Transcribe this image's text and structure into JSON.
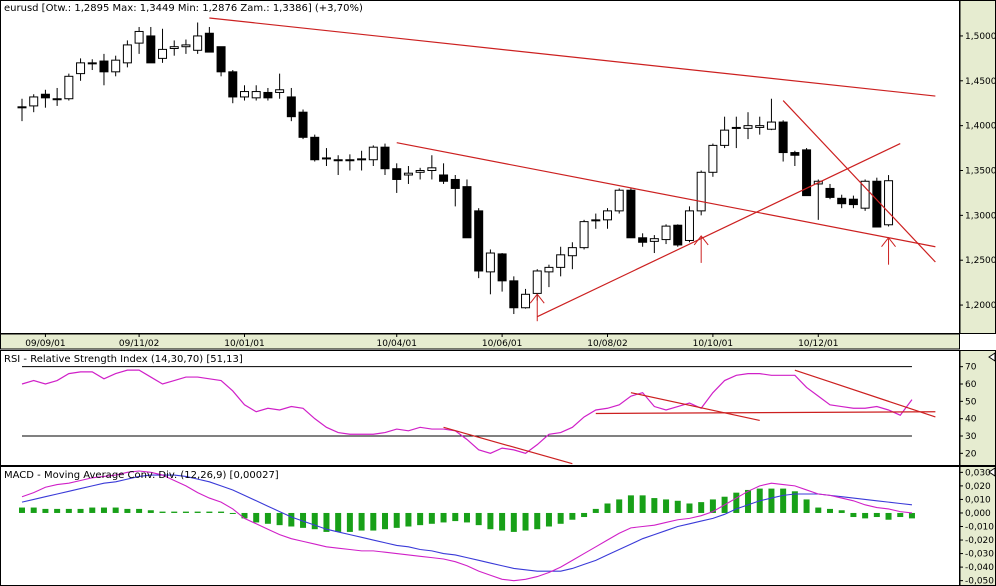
{
  "colors": {
    "background": "#ffffff",
    "axis_bg": "#e6ecd0",
    "bull_fill": "#ffffff",
    "bear_fill": "#000000",
    "candle_stroke": "#000000",
    "trendline": "#cc2020",
    "rsi_line": "#d020c8",
    "macd_line": "#3a3ad8",
    "signal_line": "#d020c8",
    "histogram": "#18a018",
    "level_line": "#000000"
  },
  "chart_data": [
    {
      "type": "candlestick",
      "title": "eurusd [Otw.: 1,2895  Max: 1,3449  Min: 1,2876  Zam.: 1,3386] (+3,70%)",
      "ylim": [
        1.18,
        1.52
      ],
      "y_ticks": [
        "1,2000",
        "1,2500",
        "1,3000",
        "1,3500",
        "1,4000",
        "1,4500",
        "1,5000"
      ],
      "y_tick_values": [
        1.2,
        1.25,
        1.3,
        1.35,
        1.4,
        1.45,
        1.5
      ],
      "x_labels": [
        "09/09/01",
        "09/11/02",
        "10/01/01",
        "10/04/01",
        "10/06/01",
        "10/08/02",
        "10/10/01",
        "10/12/01"
      ],
      "x_label_index": [
        2,
        10,
        19,
        32,
        41,
        50,
        59,
        68
      ],
      "candles": [
        {
          "o": 1.42,
          "h": 1.43,
          "l": 1.405,
          "c": 1.421
        },
        {
          "o": 1.422,
          "h": 1.435,
          "l": 1.415,
          "c": 1.432
        },
        {
          "o": 1.435,
          "h": 1.44,
          "l": 1.42,
          "c": 1.431
        },
        {
          "o": 1.43,
          "h": 1.442,
          "l": 1.422,
          "c": 1.43
        },
        {
          "o": 1.43,
          "h": 1.458,
          "l": 1.428,
          "c": 1.455
        },
        {
          "o": 1.458,
          "h": 1.475,
          "l": 1.45,
          "c": 1.47
        },
        {
          "o": 1.47,
          "h": 1.474,
          "l": 1.462,
          "c": 1.47
        },
        {
          "o": 1.472,
          "h": 1.48,
          "l": 1.445,
          "c": 1.46
        },
        {
          "o": 1.46,
          "h": 1.478,
          "l": 1.455,
          "c": 1.473
        },
        {
          "o": 1.47,
          "h": 1.495,
          "l": 1.465,
          "c": 1.49
        },
        {
          "o": 1.492,
          "h": 1.51,
          "l": 1.48,
          "c": 1.505
        },
        {
          "o": 1.5,
          "h": 1.51,
          "l": 1.47,
          "c": 1.47
        },
        {
          "o": 1.475,
          "h": 1.508,
          "l": 1.47,
          "c": 1.485
        },
        {
          "o": 1.486,
          "h": 1.495,
          "l": 1.478,
          "c": 1.488
        },
        {
          "o": 1.488,
          "h": 1.496,
          "l": 1.48,
          "c": 1.49
        },
        {
          "o": 1.484,
          "h": 1.515,
          "l": 1.48,
          "c": 1.5
        },
        {
          "o": 1.503,
          "h": 1.51,
          "l": 1.482,
          "c": 1.482
        },
        {
          "o": 1.488,
          "h": 1.488,
          "l": 1.455,
          "c": 1.46
        },
        {
          "o": 1.46,
          "h": 1.462,
          "l": 1.425,
          "c": 1.432
        },
        {
          "o": 1.432,
          "h": 1.445,
          "l": 1.428,
          "c": 1.438
        },
        {
          "o": 1.431,
          "h": 1.445,
          "l": 1.428,
          "c": 1.438
        },
        {
          "o": 1.437,
          "h": 1.442,
          "l": 1.428,
          "c": 1.431
        },
        {
          "o": 1.437,
          "h": 1.458,
          "l": 1.43,
          "c": 1.44
        },
        {
          "o": 1.432,
          "h": 1.442,
          "l": 1.405,
          "c": 1.41
        },
        {
          "o": 1.415,
          "h": 1.418,
          "l": 1.385,
          "c": 1.387
        },
        {
          "o": 1.387,
          "h": 1.39,
          "l": 1.36,
          "c": 1.362
        },
        {
          "o": 1.364,
          "h": 1.375,
          "l": 1.355,
          "c": 1.363
        },
        {
          "o": 1.362,
          "h": 1.367,
          "l": 1.345,
          "c": 1.362
        },
        {
          "o": 1.361,
          "h": 1.368,
          "l": 1.35,
          "c": 1.362
        },
        {
          "o": 1.362,
          "h": 1.372,
          "l": 1.35,
          "c": 1.363
        },
        {
          "o": 1.362,
          "h": 1.378,
          "l": 1.355,
          "c": 1.376
        },
        {
          "o": 1.376,
          "h": 1.38,
          "l": 1.345,
          "c": 1.352
        },
        {
          "o": 1.352,
          "h": 1.358,
          "l": 1.325,
          "c": 1.34
        },
        {
          "o": 1.345,
          "h": 1.355,
          "l": 1.335,
          "c": 1.347
        },
        {
          "o": 1.348,
          "h": 1.353,
          "l": 1.34,
          "c": 1.35
        },
        {
          "o": 1.35,
          "h": 1.367,
          "l": 1.34,
          "c": 1.353
        },
        {
          "o": 1.345,
          "h": 1.358,
          "l": 1.335,
          "c": 1.338
        },
        {
          "o": 1.34,
          "h": 1.345,
          "l": 1.31,
          "c": 1.33
        },
        {
          "o": 1.332,
          "h": 1.34,
          "l": 1.278,
          "c": 1.275
        },
        {
          "o": 1.305,
          "h": 1.308,
          "l": 1.23,
          "c": 1.238
        },
        {
          "o": 1.237,
          "h": 1.262,
          "l": 1.212,
          "c": 1.258
        },
        {
          "o": 1.257,
          "h": 1.258,
          "l": 1.215,
          "c": 1.227
        },
        {
          "o": 1.227,
          "h": 1.232,
          "l": 1.19,
          "c": 1.197
        },
        {
          "o": 1.197,
          "h": 1.218,
          "l": 1.196,
          "c": 1.212
        },
        {
          "o": 1.213,
          "h": 1.24,
          "l": 1.205,
          "c": 1.238
        },
        {
          "o": 1.237,
          "h": 1.245,
          "l": 1.22,
          "c": 1.242
        },
        {
          "o": 1.242,
          "h": 1.265,
          "l": 1.232,
          "c": 1.256
        },
        {
          "o": 1.255,
          "h": 1.27,
          "l": 1.24,
          "c": 1.264
        },
        {
          "o": 1.264,
          "h": 1.295,
          "l": 1.262,
          "c": 1.293
        },
        {
          "o": 1.295,
          "h": 1.302,
          "l": 1.285,
          "c": 1.294
        },
        {
          "o": 1.295,
          "h": 1.308,
          "l": 1.285,
          "c": 1.305
        },
        {
          "o": 1.305,
          "h": 1.33,
          "l": 1.302,
          "c": 1.328
        },
        {
          "o": 1.328,
          "h": 1.33,
          "l": 1.275,
          "c": 1.275
        },
        {
          "o": 1.275,
          "h": 1.28,
          "l": 1.265,
          "c": 1.27
        },
        {
          "o": 1.271,
          "h": 1.278,
          "l": 1.258,
          "c": 1.274
        },
        {
          "o": 1.273,
          "h": 1.29,
          "l": 1.268,
          "c": 1.288
        },
        {
          "o": 1.289,
          "h": 1.29,
          "l": 1.265,
          "c": 1.267
        },
        {
          "o": 1.272,
          "h": 1.31,
          "l": 1.27,
          "c": 1.305
        },
        {
          "o": 1.305,
          "h": 1.35,
          "l": 1.3,
          "c": 1.348
        },
        {
          "o": 1.348,
          "h": 1.38,
          "l": 1.343,
          "c": 1.378
        },
        {
          "o": 1.378,
          "h": 1.41,
          "l": 1.375,
          "c": 1.395
        },
        {
          "o": 1.398,
          "h": 1.41,
          "l": 1.375,
          "c": 1.397
        },
        {
          "o": 1.397,
          "h": 1.415,
          "l": 1.385,
          "c": 1.4
        },
        {
          "o": 1.398,
          "h": 1.41,
          "l": 1.39,
          "c": 1.4
        },
        {
          "o": 1.396,
          "h": 1.43,
          "l": 1.395,
          "c": 1.404
        },
        {
          "o": 1.404,
          "h": 1.406,
          "l": 1.36,
          "c": 1.37
        },
        {
          "o": 1.37,
          "h": 1.372,
          "l": 1.355,
          "c": 1.367
        },
        {
          "o": 1.373,
          "h": 1.375,
          "l": 1.322,
          "c": 1.322
        },
        {
          "o": 1.335,
          "h": 1.34,
          "l": 1.295,
          "c": 1.338
        },
        {
          "o": 1.33,
          "h": 1.335,
          "l": 1.318,
          "c": 1.32
        },
        {
          "o": 1.319,
          "h": 1.323,
          "l": 1.308,
          "c": 1.313
        },
        {
          "o": 1.318,
          "h": 1.322,
          "l": 1.308,
          "c": 1.312
        },
        {
          "o": 1.308,
          "h": 1.34,
          "l": 1.305,
          "c": 1.338
        },
        {
          "o": 1.338,
          "h": 1.342,
          "l": 1.287,
          "c": 1.287
        },
        {
          "o": 1.2895,
          "h": 1.3449,
          "l": 1.2876,
          "c": 1.3386
        }
      ],
      "trendlines": [
        {
          "x1": 16,
          "y1": 1.52,
          "x2": 78,
          "y2": 1.433
        },
        {
          "x1": 32,
          "y1": 1.381,
          "x2": 78,
          "y2": 1.265
        },
        {
          "x1": 44,
          "y1": 1.187,
          "x2": 75,
          "y2": 1.38
        },
        {
          "x1": 65,
          "y1": 1.428,
          "x2": 78,
          "y2": 1.248
        }
      ],
      "arrows": [
        {
          "x": 44,
          "y": 1.182
        },
        {
          "x": 58,
          "y": 1.247
        },
        {
          "x": 74,
          "y": 1.245
        }
      ]
    },
    {
      "type": "line",
      "title": "RSI - Relative Strength Index (14,30,70) [51,13]",
      "ylim": [
        15,
        75
      ],
      "y_ticks": [
        "20",
        "30",
        "40",
        "50",
        "60",
        "70"
      ],
      "y_tick_values": [
        20,
        30,
        40,
        50,
        60,
        70
      ],
      "levels": [
        30,
        70
      ],
      "values": [
        60,
        62,
        60,
        62,
        66,
        67,
        67,
        63,
        66,
        68,
        68,
        64,
        60,
        62,
        64,
        64,
        63,
        62,
        56,
        48,
        44,
        46,
        45,
        47,
        46,
        40,
        35,
        32,
        31,
        31,
        31,
        32,
        34,
        33,
        35,
        34,
        34,
        33,
        28,
        22,
        20,
        23,
        22,
        20,
        25,
        31,
        32,
        35,
        41,
        45,
        46,
        48,
        53,
        55,
        47,
        45,
        47,
        49,
        46,
        55,
        62,
        65,
        66,
        66,
        65,
        65,
        65,
        58,
        53,
        48,
        47,
        46,
        46,
        47,
        45,
        42,
        51
      ],
      "series_name": "RSI",
      "trendlines": [
        {
          "x1": 52,
          "y1": 55,
          "x2": 63,
          "y2": 39
        },
        {
          "x1": 49,
          "y1": 43,
          "x2": 78,
          "y2": 44
        },
        {
          "x1": 66,
          "y1": 68,
          "x2": 78,
          "y2": 41
        },
        {
          "x1": 36,
          "y1": 35,
          "x2": 47,
          "y2": 14
        }
      ]
    },
    {
      "type": "macd",
      "title": "MACD - Moving Average Conv. Div. (12,26,9) [0,00027]",
      "ylim": [
        -0.051,
        0.031
      ],
      "y_ticks": [
        "0,030",
        "0,020",
        "0,010",
        "0,000",
        "-0,010",
        "-0,020",
        "-0,030",
        "-0,040",
        "-0,050"
      ],
      "y_tick_values": [
        0.03,
        0.02,
        0.01,
        0.0,
        -0.01,
        -0.02,
        -0.03,
        -0.04,
        -0.05
      ],
      "histogram": [
        0.004,
        0.004,
        0.003,
        0.003,
        0.003,
        0.003,
        0.004,
        0.004,
        0.004,
        0.003,
        0.003,
        0.002,
        0.001,
        0.001,
        0.001,
        0.001,
        0.001,
        0.001,
        0,
        -0.004,
        -0.007,
        -0.008,
        -0.009,
        -0.01,
        -0.011,
        -0.012,
        -0.014,
        -0.014,
        -0.014,
        -0.013,
        -0.013,
        -0.012,
        -0.011,
        -0.01,
        -0.009,
        -0.008,
        -0.007,
        -0.006,
        -0.007,
        -0.009,
        -0.012,
        -0.013,
        -0.014,
        -0.013,
        -0.012,
        -0.01,
        -0.008,
        -0.005,
        -0.003,
        0.003,
        0.007,
        0.01,
        0.013,
        0.013,
        0.011,
        0.01,
        0.009,
        0.007,
        0.008,
        0.01,
        0.012,
        0.015,
        0.017,
        0.018,
        0.018,
        0.018,
        0.016,
        0.01,
        0.004,
        0.003,
        0.002,
        -0.003,
        -0.004,
        -0.003,
        -0.005,
        -0.003,
        -0.004
      ],
      "macd": [
        0.012,
        0.015,
        0.019,
        0.021,
        0.022,
        0.024,
        0.026,
        0.027,
        0.028,
        0.03,
        0.031,
        0.03,
        0.028,
        0.024,
        0.02,
        0.015,
        0.011,
        0.008,
        0.003,
        -0.004,
        -0.008,
        -0.012,
        -0.016,
        -0.019,
        -0.021,
        -0.023,
        -0.025,
        -0.026,
        -0.027,
        -0.028,
        -0.028,
        -0.029,
        -0.03,
        -0.031,
        -0.032,
        -0.033,
        -0.034,
        -0.036,
        -0.039,
        -0.043,
        -0.046,
        -0.049,
        -0.05,
        -0.049,
        -0.047,
        -0.044,
        -0.04,
        -0.035,
        -0.03,
        -0.025,
        -0.02,
        -0.015,
        -0.011,
        -0.01,
        -0.009,
        -0.007,
        -0.005,
        -0.004,
        -0.002,
        0.001,
        0.006,
        0.011,
        0.016,
        0.02,
        0.022,
        0.021,
        0.02,
        0.017,
        0.014,
        0.013,
        0.011,
        0.009,
        0.006,
        0.004,
        0.003,
        0.001,
        0.0
      ],
      "signal": [
        0.008,
        0.01,
        0.012,
        0.014,
        0.016,
        0.018,
        0.02,
        0.022,
        0.023,
        0.025,
        0.027,
        0.028,
        0.028,
        0.028,
        0.027,
        0.025,
        0.023,
        0.02,
        0.017,
        0.013,
        0.009,
        0.005,
        0.001,
        -0.003,
        -0.006,
        -0.009,
        -0.012,
        -0.014,
        -0.016,
        -0.018,
        -0.02,
        -0.022,
        -0.024,
        -0.025,
        -0.027,
        -0.028,
        -0.03,
        -0.031,
        -0.033,
        -0.035,
        -0.037,
        -0.039,
        -0.041,
        -0.042,
        -0.043,
        -0.043,
        -0.043,
        -0.041,
        -0.038,
        -0.035,
        -0.031,
        -0.027,
        -0.023,
        -0.019,
        -0.016,
        -0.013,
        -0.01,
        -0.008,
        -0.006,
        -0.004,
        -0.001,
        0.003,
        0.006,
        0.009,
        0.011,
        0.013,
        0.014,
        0.014,
        0.014,
        0.013,
        0.012,
        0.011,
        0.01,
        0.009,
        0.008,
        0.007,
        0.006
      ]
    }
  ]
}
